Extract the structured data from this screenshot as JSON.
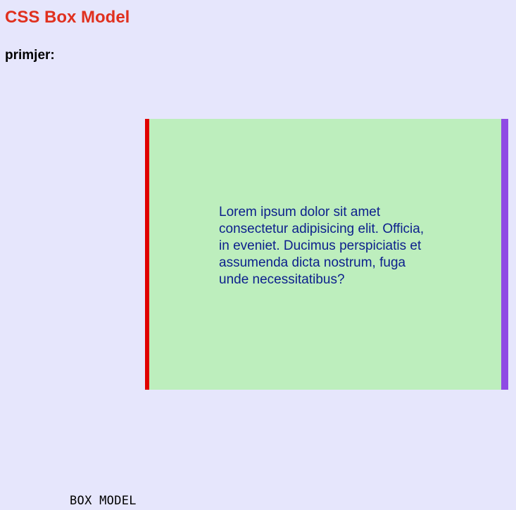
{
  "page": {
    "title": "CSS Box Model",
    "section_label": "primjer:",
    "footer_label": "BOX MODEL"
  },
  "box": {
    "text": "Lorem ipsum dolor sit amet consectetur adipisicing elit. Officia, in eveniet. Ducimus perspiciatis et assumenda dicta nostrum, fuga unde necessitatibus?"
  },
  "colors": {
    "background": "#e6e6fc",
    "title": "#e0301e",
    "box_background": "#bdeebd",
    "box_border_left": "#e00000",
    "box_border_right": "#8f4be4",
    "box_text": "#0c1f8c"
  }
}
